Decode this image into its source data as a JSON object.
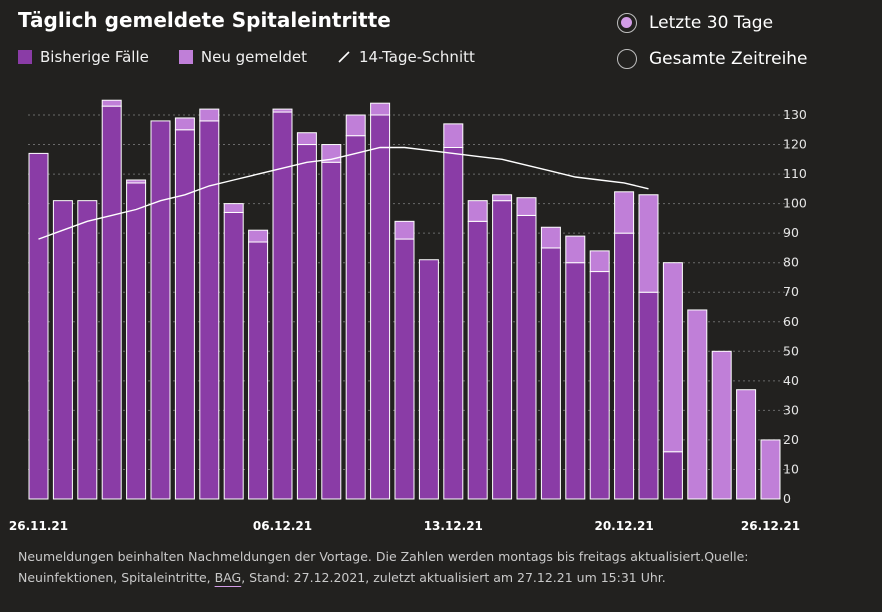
{
  "title": "Täglich gemeldete Spitaleintritte",
  "legend": {
    "existing_label": "Bisherige Fälle",
    "new_label": "Neu gemeldet",
    "avg_label": "14-Tage-Schnitt"
  },
  "radio": {
    "option1": "Letzte 30 Tage",
    "option2": "Gesamte Zeitreihe"
  },
  "colors": {
    "existing": "#8a3ca6",
    "new": "#c07fd8",
    "bar_border": "#ffffff",
    "avg_line": "#ffffff",
    "grid": "#6a6a6a"
  },
  "footnote": {
    "text1": "Neumeldungen beinhalten Nachmeldungen der Vortage. Die Zahlen werden montags bis freitags aktualisiert.Quelle:",
    "text2a": "Neuinfektionen, Spitaleintritte, ",
    "link": "BAG",
    "text2b": ", Stand: 27.12.2021, zuletzt aktualisiert am 27.12.21 um 15:31 Uhr."
  },
  "chart_data": {
    "type": "bar",
    "stacked": true,
    "title": "Täglich gemeldete Spitaleintritte",
    "x_tick_labels": [
      "26.11.21",
      "06.12.21",
      "13.12.21",
      "20.12.21",
      "26.12.21"
    ],
    "x_tick_indices": [
      0,
      10,
      17,
      24,
      30
    ],
    "categories": [
      "26.11.21",
      "27.11.21",
      "28.11.21",
      "29.11.21",
      "30.11.21",
      "01.12.21",
      "02.12.21",
      "03.12.21",
      "04.12.21",
      "05.12.21",
      "06.12.21",
      "07.12.21",
      "08.12.21",
      "09.12.21",
      "10.12.21",
      "11.12.21",
      "12.12.21",
      "13.12.21",
      "14.12.21",
      "15.12.21",
      "16.12.21",
      "17.12.21",
      "18.12.21",
      "19.12.21",
      "20.12.21",
      "21.12.21",
      "22.12.21",
      "23.12.21",
      "24.12.21",
      "25.12.21",
      "26.12.21"
    ],
    "series": [
      {
        "name": "Bisherige Fälle",
        "values": [
          117,
          101,
          101,
          133,
          107,
          128,
          125,
          128,
          97,
          87,
          131,
          120,
          114,
          123,
          130,
          88,
          81,
          119,
          94,
          101,
          96,
          85,
          80,
          77,
          90,
          70,
          16,
          0,
          0,
          0,
          0
        ]
      },
      {
        "name": "Neu gemeldet",
        "values": [
          0,
          0,
          0,
          2,
          1,
          0,
          4,
          4,
          3,
          4,
          1,
          4,
          6,
          7,
          4,
          6,
          0,
          8,
          7,
          2,
          6,
          7,
          9,
          7,
          14,
          33,
          64,
          64,
          50,
          37,
          20
        ]
      }
    ],
    "avg_series": {
      "name": "14-Tage-Schnitt",
      "values": [
        88,
        91,
        94,
        96,
        98,
        101,
        103,
        106,
        108,
        110,
        112,
        114,
        115,
        117,
        119,
        119,
        118,
        117,
        116,
        115,
        113,
        111,
        109,
        108,
        107,
        105,
        null,
        null,
        null,
        null,
        null
      ]
    },
    "ylim": [
      0,
      135
    ],
    "yticks": [
      0,
      10,
      20,
      30,
      40,
      50,
      60,
      70,
      80,
      90,
      100,
      110,
      120,
      130
    ],
    "grid": true,
    "y_axis_position": "right"
  }
}
